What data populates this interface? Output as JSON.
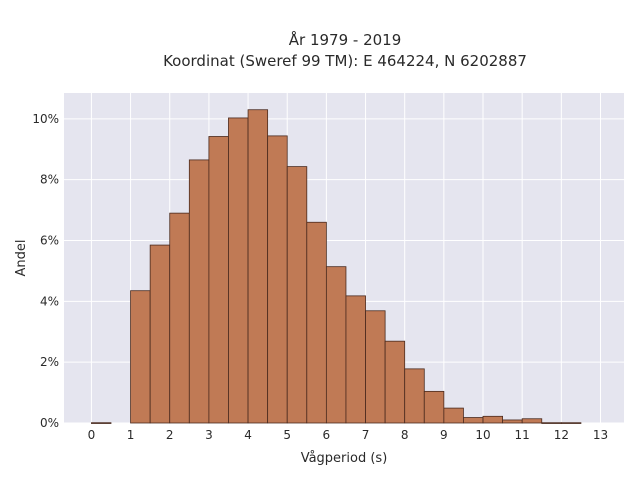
{
  "chart_data": {
    "type": "bar",
    "title_lines": [
      "År 1979 - 2019",
      "Koordinat (Sweref 99 TM): E 464224, N 6202887"
    ],
    "xlabel": "Vågperiod (s)",
    "ylabel": "Andel",
    "bin_width": 0.5,
    "bins": [
      {
        "start": 0.0,
        "value": 0.0001
      },
      {
        "start": 0.5,
        "value": 0.0
      },
      {
        "start": 1.0,
        "value": 0.0435
      },
      {
        "start": 1.5,
        "value": 0.0585
      },
      {
        "start": 2.0,
        "value": 0.069
      },
      {
        "start": 2.5,
        "value": 0.0865
      },
      {
        "start": 3.0,
        "value": 0.0942
      },
      {
        "start": 3.5,
        "value": 0.1003
      },
      {
        "start": 4.0,
        "value": 0.103
      },
      {
        "start": 4.5,
        "value": 0.0944
      },
      {
        "start": 5.0,
        "value": 0.0843
      },
      {
        "start": 5.5,
        "value": 0.066
      },
      {
        "start": 6.0,
        "value": 0.0514
      },
      {
        "start": 6.5,
        "value": 0.0418
      },
      {
        "start": 7.0,
        "value": 0.0369
      },
      {
        "start": 7.5,
        "value": 0.0269
      },
      {
        "start": 8.0,
        "value": 0.0178
      },
      {
        "start": 8.5,
        "value": 0.0104
      },
      {
        "start": 9.0,
        "value": 0.0049
      },
      {
        "start": 9.5,
        "value": 0.0018
      },
      {
        "start": 10.0,
        "value": 0.0022
      },
      {
        "start": 10.5,
        "value": 0.001
      },
      {
        "start": 11.0,
        "value": 0.0014
      },
      {
        "start": 11.5,
        "value": 0.0001
      },
      {
        "start": 12.0,
        "value": 0.0001
      }
    ],
    "xticks": [
      "0",
      "1",
      "2",
      "3",
      "4",
      "5",
      "6",
      "7",
      "8",
      "9",
      "10",
      "11",
      "12",
      "13"
    ],
    "yticks": [
      "0%",
      "2%",
      "4%",
      "6%",
      "8%",
      "10%"
    ],
    "ytick_values": [
      0,
      0.02,
      0.04,
      0.06,
      0.08,
      0.1
    ],
    "xlim": [
      -0.7,
      13.6
    ],
    "ylim": [
      0,
      0.1085
    ],
    "grid": true,
    "colors": {
      "bar_fill": "#c07a55",
      "bar_edge": "#4a2a1e",
      "plot_bg": "#e5e5ef",
      "grid": "#ffffff"
    }
  }
}
